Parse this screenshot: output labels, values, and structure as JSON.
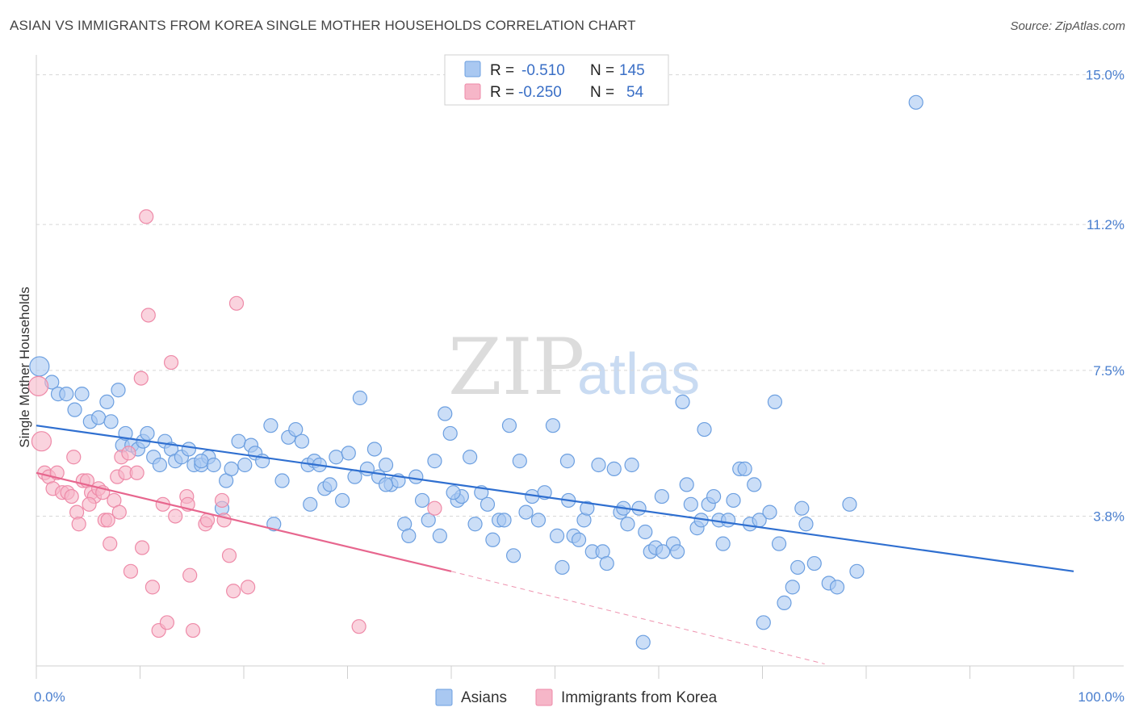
{
  "header": {
    "title": "ASIAN VS IMMIGRANTS FROM KOREA SINGLE MOTHER HOUSEHOLDS CORRELATION CHART",
    "source": "Source: ZipAtlas.com"
  },
  "watermark": {
    "zip": "ZIP",
    "atlas": "atlas"
  },
  "stats_legend": [
    {
      "r_label": "R =",
      "r_value": "-0.510",
      "n_label": "N =",
      "n_value": "145",
      "color": "#a9c8f1"
    },
    {
      "r_label": "R =",
      "r_value": "-0.250",
      "n_label": "N =",
      "n_value": "54",
      "color": "#f6b6c8"
    }
  ],
  "colors": {
    "asians_fill": "#a9c8f1",
    "asians_stroke": "#6c9fe0",
    "asians_line": "#2f6fd0",
    "korea_fill": "#f6b6c8",
    "korea_stroke": "#ee8aa8",
    "korea_line": "#e7668e",
    "tick_text": "#4a7fcf",
    "grid": "#d8d8d8"
  },
  "chart_data": {
    "type": "scatter",
    "title": "ASIAN VS IMMIGRANTS FROM KOREA SINGLE MOTHER HOUSEHOLDS CORRELATION CHART",
    "xlabel": "",
    "ylabel": "Single Mother Households",
    "xlim": [
      0,
      100
    ],
    "ylim": [
      0,
      15.3
    ],
    "x_tick_labels": [
      "0.0%",
      "100.0%"
    ],
    "y_ticks": [
      3.8,
      7.5,
      11.2,
      15.0
    ],
    "y_tick_labels": [
      "3.8%",
      "7.5%",
      "11.2%",
      "15.0%"
    ],
    "grid": true,
    "legend": [
      "Asians",
      "Immigrants from Korea"
    ],
    "series": [
      {
        "name": "Asians",
        "trend": {
          "x": [
            0,
            100
          ],
          "y": [
            6.1,
            2.4
          ]
        },
        "points": [
          [
            0.3,
            7.6
          ],
          [
            1.5,
            7.2
          ],
          [
            2.1,
            6.9
          ],
          [
            2.9,
            6.9
          ],
          [
            3.7,
            6.5
          ],
          [
            4.4,
            6.9
          ],
          [
            5.2,
            6.2
          ],
          [
            6.0,
            6.3
          ],
          [
            6.8,
            6.7
          ],
          [
            7.2,
            6.2
          ],
          [
            7.9,
            7.0
          ],
          [
            8.3,
            5.6
          ],
          [
            8.6,
            5.9
          ],
          [
            9.2,
            5.6
          ],
          [
            9.8,
            5.5
          ],
          [
            10.3,
            5.7
          ],
          [
            10.7,
            5.9
          ],
          [
            11.3,
            5.3
          ],
          [
            11.9,
            5.1
          ],
          [
            12.4,
            5.7
          ],
          [
            13.0,
            5.5
          ],
          [
            13.4,
            5.2
          ],
          [
            14.0,
            5.3
          ],
          [
            14.7,
            5.5
          ],
          [
            15.2,
            5.1
          ],
          [
            15.9,
            5.1
          ],
          [
            16.6,
            5.3
          ],
          [
            17.1,
            5.1
          ],
          [
            17.9,
            4.0
          ],
          [
            18.3,
            4.7
          ],
          [
            18.8,
            5.0
          ],
          [
            19.5,
            5.7
          ],
          [
            20.1,
            5.1
          ],
          [
            20.7,
            5.6
          ],
          [
            21.1,
            5.4
          ],
          [
            21.8,
            5.2
          ],
          [
            22.6,
            6.1
          ],
          [
            22.9,
            3.6
          ],
          [
            23.7,
            4.7
          ],
          [
            24.3,
            5.8
          ],
          [
            25.0,
            6.0
          ],
          [
            25.6,
            5.7
          ],
          [
            26.2,
            5.1
          ],
          [
            26.8,
            5.2
          ],
          [
            27.3,
            5.1
          ],
          [
            27.8,
            4.5
          ],
          [
            28.3,
            4.6
          ],
          [
            28.9,
            5.3
          ],
          [
            29.5,
            4.2
          ],
          [
            30.1,
            5.4
          ],
          [
            30.7,
            4.8
          ],
          [
            31.2,
            6.8
          ],
          [
            31.9,
            5.0
          ],
          [
            32.6,
            5.5
          ],
          [
            33.0,
            4.8
          ],
          [
            33.7,
            5.1
          ],
          [
            34.2,
            4.6
          ],
          [
            34.9,
            4.7
          ],
          [
            35.5,
            3.6
          ],
          [
            35.9,
            3.3
          ],
          [
            36.6,
            4.8
          ],
          [
            37.2,
            4.2
          ],
          [
            37.8,
            3.7
          ],
          [
            38.4,
            5.2
          ],
          [
            38.9,
            3.3
          ],
          [
            39.4,
            6.4
          ],
          [
            39.9,
            5.9
          ],
          [
            40.6,
            4.2
          ],
          [
            41.0,
            4.3
          ],
          [
            41.8,
            5.3
          ],
          [
            42.3,
            3.6
          ],
          [
            42.9,
            4.4
          ],
          [
            43.5,
            4.1
          ],
          [
            44.0,
            3.2
          ],
          [
            44.6,
            3.7
          ],
          [
            45.1,
            3.7
          ],
          [
            45.6,
            6.1
          ],
          [
            46.0,
            2.8
          ],
          [
            46.6,
            5.2
          ],
          [
            47.2,
            3.9
          ],
          [
            47.8,
            4.3
          ],
          [
            48.4,
            3.7
          ],
          [
            49.0,
            4.4
          ],
          [
            49.8,
            6.1
          ],
          [
            50.2,
            3.3
          ],
          [
            50.7,
            2.5
          ],
          [
            51.3,
            4.2
          ],
          [
            51.8,
            3.3
          ],
          [
            52.3,
            3.2
          ],
          [
            52.8,
            3.7
          ],
          [
            53.1,
            4.0
          ],
          [
            53.6,
            2.9
          ],
          [
            54.2,
            5.1
          ],
          [
            54.6,
            2.9
          ],
          [
            55.0,
            2.6
          ],
          [
            55.7,
            5.0
          ],
          [
            56.3,
            3.9
          ],
          [
            56.6,
            4.0
          ],
          [
            57.0,
            3.6
          ],
          [
            57.4,
            5.1
          ],
          [
            58.1,
            4.0
          ],
          [
            58.7,
            3.4
          ],
          [
            59.2,
            2.9
          ],
          [
            59.7,
            3.0
          ],
          [
            60.3,
            4.3
          ],
          [
            61.4,
            3.1
          ],
          [
            61.8,
            2.9
          ],
          [
            62.3,
            6.7
          ],
          [
            62.7,
            4.6
          ],
          [
            63.1,
            4.1
          ],
          [
            63.7,
            3.5
          ],
          [
            64.1,
            3.7
          ],
          [
            64.4,
            6.0
          ],
          [
            64.8,
            4.1
          ],
          [
            65.3,
            4.3
          ],
          [
            65.8,
            3.7
          ],
          [
            66.2,
            3.1
          ],
          [
            66.7,
            3.7
          ],
          [
            67.2,
            4.2
          ],
          [
            67.8,
            5.0
          ],
          [
            68.3,
            5.0
          ],
          [
            68.8,
            3.6
          ],
          [
            69.2,
            4.6
          ],
          [
            69.7,
            3.7
          ],
          [
            70.1,
            1.1
          ],
          [
            70.7,
            3.9
          ],
          [
            71.2,
            6.7
          ],
          [
            71.6,
            3.1
          ],
          [
            72.1,
            1.6
          ],
          [
            72.9,
            2.0
          ],
          [
            73.4,
            2.5
          ],
          [
            73.8,
            4.0
          ],
          [
            74.2,
            3.6
          ],
          [
            75.0,
            2.6
          ],
          [
            76.4,
            2.1
          ],
          [
            77.2,
            2.0
          ],
          [
            78.4,
            4.1
          ],
          [
            79.1,
            2.4
          ],
          [
            84.8,
            14.3
          ],
          [
            58.5,
            0.6
          ],
          [
            60.4,
            2.9
          ],
          [
            51.2,
            5.2
          ],
          [
            40.2,
            4.4
          ],
          [
            33.7,
            4.6
          ],
          [
            26.4,
            4.1
          ],
          [
            15.9,
            5.2
          ]
        ]
      },
      {
        "name": "Immigrants from Korea",
        "trend": {
          "x": [
            0,
            40
          ],
          "y": [
            4.9,
            2.4
          ]
        },
        "trend_dashed": {
          "x": [
            40,
            76
          ],
          "y": [
            2.4,
            0.05
          ]
        },
        "points": [
          [
            0.2,
            7.1
          ],
          [
            0.5,
            5.7
          ],
          [
            0.8,
            4.9
          ],
          [
            1.2,
            4.8
          ],
          [
            1.6,
            4.5
          ],
          [
            2.0,
            4.9
          ],
          [
            2.5,
            4.4
          ],
          [
            3.0,
            4.4
          ],
          [
            3.4,
            4.3
          ],
          [
            3.6,
            5.3
          ],
          [
            3.9,
            3.9
          ],
          [
            4.1,
            3.6
          ],
          [
            4.5,
            4.7
          ],
          [
            4.9,
            4.7
          ],
          [
            5.3,
            4.4
          ],
          [
            5.6,
            4.3
          ],
          [
            6.0,
            4.5
          ],
          [
            6.4,
            4.4
          ],
          [
            6.6,
            3.7
          ],
          [
            6.9,
            3.7
          ],
          [
            7.1,
            3.1
          ],
          [
            7.5,
            4.2
          ],
          [
            7.8,
            4.8
          ],
          [
            8.0,
            3.9
          ],
          [
            8.2,
            5.3
          ],
          [
            8.6,
            4.9
          ],
          [
            8.9,
            5.4
          ],
          [
            9.1,
            2.4
          ],
          [
            9.7,
            4.9
          ],
          [
            10.1,
            7.3
          ],
          [
            10.2,
            3.0
          ],
          [
            10.6,
            11.4
          ],
          [
            10.8,
            8.9
          ],
          [
            11.2,
            2.0
          ],
          [
            11.8,
            0.9
          ],
          [
            12.2,
            4.1
          ],
          [
            12.6,
            1.1
          ],
          [
            13.0,
            7.7
          ],
          [
            13.4,
            3.8
          ],
          [
            14.5,
            4.3
          ],
          [
            14.8,
            2.3
          ],
          [
            15.1,
            0.9
          ],
          [
            16.3,
            3.6
          ],
          [
            16.5,
            3.7
          ],
          [
            17.9,
            4.2
          ],
          [
            18.1,
            3.7
          ],
          [
            18.6,
            2.8
          ],
          [
            19.0,
            1.9
          ],
          [
            19.3,
            9.2
          ],
          [
            20.4,
            2.0
          ],
          [
            38.4,
            4.0
          ],
          [
            31.1,
            1.0
          ],
          [
            14.6,
            4.1
          ],
          [
            5.1,
            4.1
          ]
        ]
      }
    ]
  },
  "bottom_legend": [
    {
      "label": "Asians"
    },
    {
      "label": "Immigrants from Korea"
    }
  ]
}
